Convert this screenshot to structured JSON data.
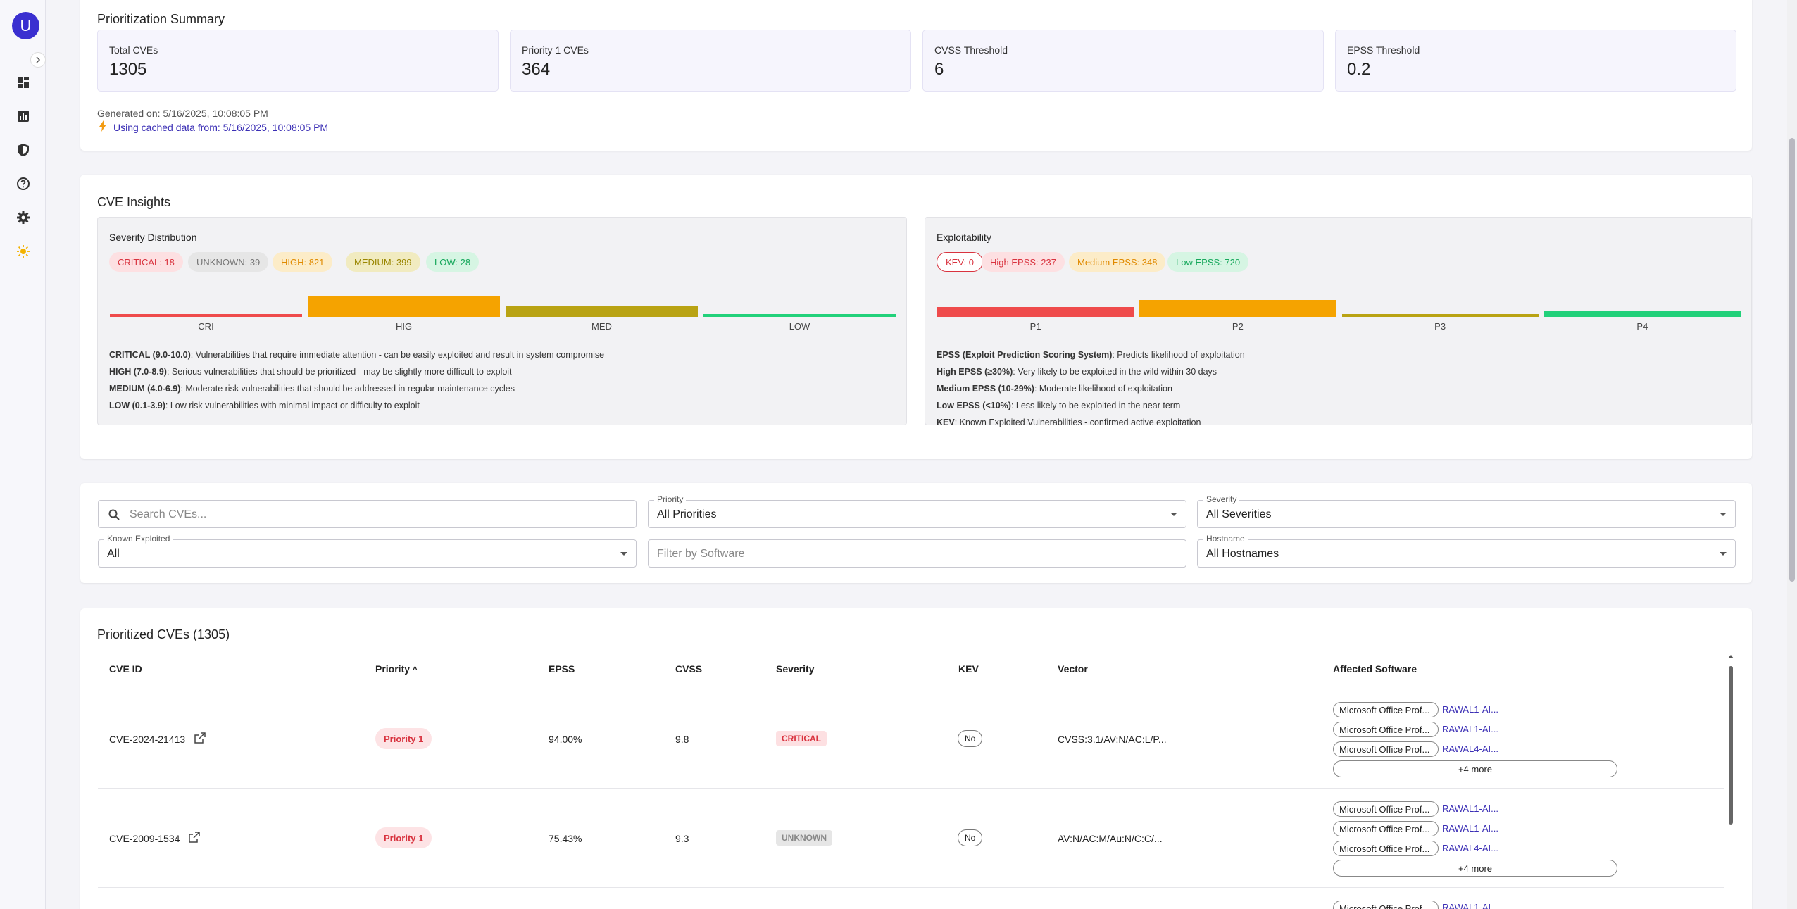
{
  "user": {
    "avatar_letter": "U"
  },
  "sidebar": {
    "icons": [
      "dashboard-icon",
      "chart-icon",
      "shield-icon",
      "help-icon",
      "settings-icon",
      "sun-icon"
    ]
  },
  "summary": {
    "title": "Prioritization Summary",
    "stats": [
      {
        "label": "Total CVEs",
        "value": "1305"
      },
      {
        "label": "Priority 1 CVEs",
        "value": "364"
      },
      {
        "label": "CVSS Threshold",
        "value": "6"
      },
      {
        "label": "EPSS Threshold",
        "value": "0.2"
      }
    ],
    "generated": "Generated on: 5/16/2025, 10:08:05 PM",
    "cached": "Using cached data from: 5/16/2025, 10:08:05 PM"
  },
  "insights": {
    "title": "CVE Insights",
    "severity": {
      "title": "Severity Distribution",
      "chips": [
        "CRITICAL: 18",
        "UNKNOWN: 39",
        "HIGH: 821",
        "MEDIUM: 399",
        "LOW: 28"
      ],
      "bar_labels": [
        "CRI",
        "HIG",
        "MED",
        "LOW"
      ],
      "descriptions": [
        {
          "term": "CRITICAL (9.0-10.0)",
          "text": ": Vulnerabilities that require immediate attention - can be easily exploited and result in system compromise"
        },
        {
          "term": "HIGH (7.0-8.9)",
          "text": ": Serious vulnerabilities that should be prioritized - may be slightly more difficult to exploit"
        },
        {
          "term": "MEDIUM (4.0-6.9)",
          "text": ": Moderate risk vulnerabilities that should be addressed in regular maintenance cycles"
        },
        {
          "term": "LOW (0.1-3.9)",
          "text": ": Low risk vulnerabilities with minimal impact or difficulty to exploit"
        }
      ]
    },
    "exploitability": {
      "title": "Exploitability",
      "chips": [
        "KEV: 0",
        "High EPSS: 237",
        "Medium EPSS: 348",
        "Low EPSS: 720"
      ],
      "bar_labels": [
        "P1",
        "P2",
        "P3",
        "P4"
      ],
      "descriptions": [
        {
          "term": "EPSS (Exploit Prediction Scoring System)",
          "text": ": Predicts likelihood of exploitation"
        },
        {
          "term": "High EPSS (≥30%)",
          "text": ": Very likely to be exploited in the wild within 30 days"
        },
        {
          "term": "Medium EPSS (10-29%)",
          "text": ": Moderate likelihood of exploitation"
        },
        {
          "term": "Low EPSS (<10%)",
          "text": ": Less likely to be exploited in the near term"
        },
        {
          "term": "KEV",
          "text": ": Known Exploited Vulnerabilities - confirmed active exploitation"
        }
      ]
    }
  },
  "chart_data": [
    {
      "type": "bar",
      "categories": [
        "CRI",
        "HIG",
        "MED",
        "LOW"
      ],
      "values": [
        18,
        821,
        399,
        28
      ],
      "colors": [
        "#ef4b4b",
        "#f5a300",
        "#b9a313",
        "#22d17a"
      ]
    },
    {
      "type": "bar",
      "categories": [
        "P1",
        "P2",
        "P3",
        "P4"
      ],
      "values": [
        364,
        634,
        108,
        199
      ],
      "colors": [
        "#ef4b4b",
        "#f5a300",
        "#b9a313",
        "#22d17a"
      ]
    }
  ],
  "filters": {
    "search_placeholder": "Search CVEs...",
    "priority": {
      "label": "Priority",
      "value": "All Priorities"
    },
    "severity": {
      "label": "Severity",
      "value": "All Severities"
    },
    "known_exploited": {
      "label": "Known Exploited",
      "value": "All"
    },
    "software_placeholder": "Filter by Software",
    "hostname": {
      "label": "Hostname",
      "value": "All Hostnames"
    }
  },
  "table": {
    "title": "Prioritized CVEs (1305)",
    "columns": [
      "CVE ID",
      "Priority",
      "EPSS",
      "CVSS",
      "Severity",
      "KEV",
      "Vector",
      "Affected Software"
    ],
    "sort_indicator": "^",
    "rows": [
      {
        "cve": "CVE-2024-21413",
        "priority": "Priority 1",
        "epss": "94.00%",
        "cvss": "9.8",
        "severity": "CRITICAL",
        "kev": "No",
        "vector": "CVSS:3.1/AV:N/AC:L/P...",
        "software": [
          {
            "name": "Microsoft Office Prof...",
            "host": "RAWAL1-AI..."
          },
          {
            "name": "Microsoft Office Prof...",
            "host": "RAWAL1-AI..."
          },
          {
            "name": "Microsoft Office Prof...",
            "host": "RAWAL4-AI..."
          }
        ],
        "more": "+4 more"
      },
      {
        "cve": "CVE-2009-1534",
        "priority": "Priority 1",
        "epss": "75.43%",
        "cvss": "9.3",
        "severity": "UNKNOWN",
        "kev": "No",
        "vector": "AV:N/AC:M/Au:N/C:C/...",
        "software": [
          {
            "name": "Microsoft Office Prof...",
            "host": "RAWAL1-AI..."
          },
          {
            "name": "Microsoft Office Prof...",
            "host": "RAWAL1-AI..."
          },
          {
            "name": "Microsoft Office Prof...",
            "host": "RAWAL4-AI..."
          }
        ],
        "more": "+4 more"
      },
      {
        "software": [
          {
            "name": "Microsoft Office Prof...",
            "host": "RAWAL1-AI..."
          }
        ]
      }
    ]
  }
}
